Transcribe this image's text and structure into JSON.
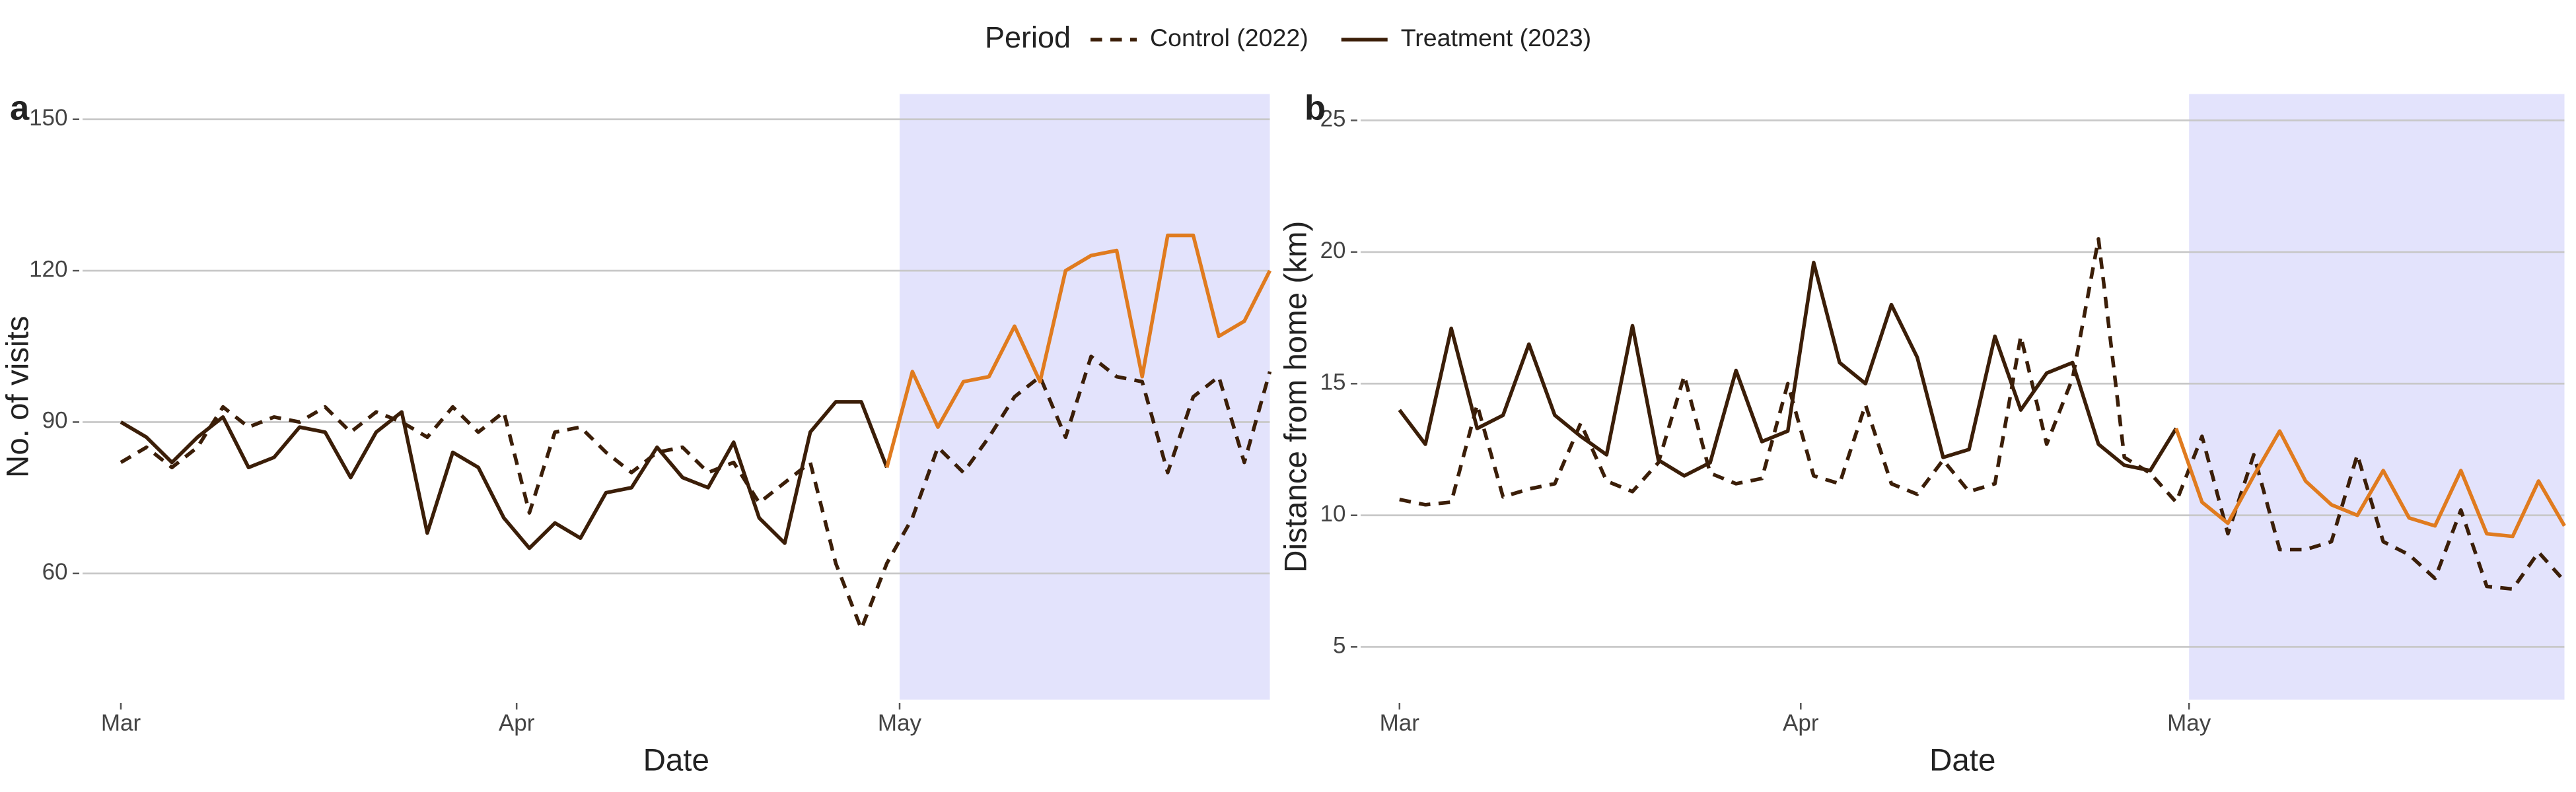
{
  "chart_data": [
    {
      "type": "line",
      "tag": "a",
      "xlabel": "Date",
      "ylabel": "No. of visits",
      "legend_title": "Period",
      "legend": "top",
      "x": [
        0,
        2,
        4,
        6,
        8,
        10,
        12,
        14,
        16,
        18,
        20,
        22,
        24,
        26,
        28,
        30,
        32,
        34,
        36,
        38,
        40,
        42,
        44,
        46,
        48,
        50,
        52,
        54,
        56,
        58,
        60,
        62,
        64,
        66,
        68,
        70,
        72,
        74,
        76,
        78,
        80,
        82,
        84,
        86,
        88,
        90
      ],
      "xlim": [
        -3,
        90
      ],
      "xticks": [
        {
          "value": 0,
          "label": "Mar"
        },
        {
          "value": 31,
          "label": "Apr"
        },
        {
          "value": 61,
          "label": "May"
        }
      ],
      "ylim": [
        35,
        155
      ],
      "yticks": [
        60,
        90,
        120,
        150
      ],
      "grid": true,
      "highlight": {
        "from": 61,
        "color": "#e07b1f",
        "shade": "#e3e3fc"
      },
      "series": [
        {
          "name": "Control (2022)",
          "color": "#3b1e08",
          "dash": "dashed",
          "values": [
            82,
            85,
            81,
            85,
            93,
            89,
            91,
            90,
            93,
            88,
            92,
            90,
            87,
            93,
            88,
            92,
            72,
            88,
            89,
            84,
            80,
            84,
            85,
            80,
            82,
            74,
            78,
            82,
            62,
            49,
            62,
            71,
            85,
            80,
            87,
            95,
            99,
            87,
            103,
            99,
            98,
            80,
            95,
            99,
            82,
            100
          ]
        },
        {
          "name": "Treatment (2023)",
          "color": "#3b1e08",
          "dash": "solid",
          "highlighted": true,
          "values": [
            90,
            87,
            82,
            87,
            91,
            81,
            83,
            89,
            88,
            79,
            88,
            92,
            68,
            84,
            81,
            71,
            65,
            70,
            67,
            76,
            77,
            85,
            79,
            77,
            86,
            71,
            66,
            88,
            94,
            94,
            81,
            100,
            89,
            98,
            99,
            109,
            98,
            120,
            123,
            124,
            99,
            127,
            127,
            107,
            110,
            120
          ]
        }
      ]
    },
    {
      "type": "line",
      "tag": "b",
      "xlabel": "Date",
      "ylabel": "Distance from home (km)",
      "x": [
        0,
        2,
        4,
        6,
        8,
        10,
        12,
        14,
        16,
        18,
        20,
        22,
        24,
        26,
        28,
        30,
        32,
        34,
        36,
        38,
        40,
        42,
        44,
        46,
        48,
        50,
        52,
        54,
        56,
        58,
        60,
        62,
        64,
        66,
        68,
        70,
        72,
        74,
        76,
        78,
        80,
        82,
        84,
        86,
        88,
        90
      ],
      "xlim": [
        -3,
        90
      ],
      "xticks": [
        {
          "value": 0,
          "label": "Mar"
        },
        {
          "value": 31,
          "label": "Apr"
        },
        {
          "value": 61,
          "label": "May"
        }
      ],
      "ylim": [
        3,
        26
      ],
      "yticks": [
        5,
        10,
        15,
        20,
        25
      ],
      "grid": true,
      "highlight": {
        "from": 61,
        "color": "#e07b1f",
        "shade": "#e3e3fc"
      },
      "series": [
        {
          "name": "Control (2022)",
          "color": "#3b1e08",
          "dash": "dashed",
          "values": [
            10.6,
            10.4,
            10.5,
            14.2,
            10.7,
            11,
            11.2,
            13.5,
            11.3,
            10.9,
            12,
            15.3,
            11.6,
            11.2,
            11.4,
            15,
            11.5,
            11.2,
            14.2,
            11.2,
            10.8,
            12.1,
            10.9,
            11.2,
            16.8,
            12.7,
            15.2,
            20.5,
            12.2,
            11.6,
            10.5,
            13,
            9.3,
            12.3,
            8.7,
            8.7,
            9,
            12.3,
            9,
            8.5,
            7.6,
            10.2,
            7.3,
            7.2,
            8.6,
            7.5
          ]
        },
        {
          "name": "Treatment (2023)",
          "color": "#3b1e08",
          "dash": "solid",
          "highlighted": true,
          "values": [
            14,
            12.7,
            17.1,
            13.3,
            13.8,
            16.5,
            13.8,
            13,
            12.3,
            17.2,
            12.1,
            11.5,
            12,
            15.5,
            12.8,
            13.2,
            19.6,
            15.8,
            15,
            18,
            16,
            12.2,
            12.5,
            16.8,
            14,
            15.4,
            15.8,
            12.7,
            11.9,
            11.7,
            13.3,
            10.5,
            9.7,
            11.5,
            13.2,
            11.3,
            10.4,
            10,
            11.7,
            9.9,
            9.6,
            11.7,
            9.3,
            9.2,
            11.3,
            9.6
          ]
        }
      ]
    }
  ]
}
